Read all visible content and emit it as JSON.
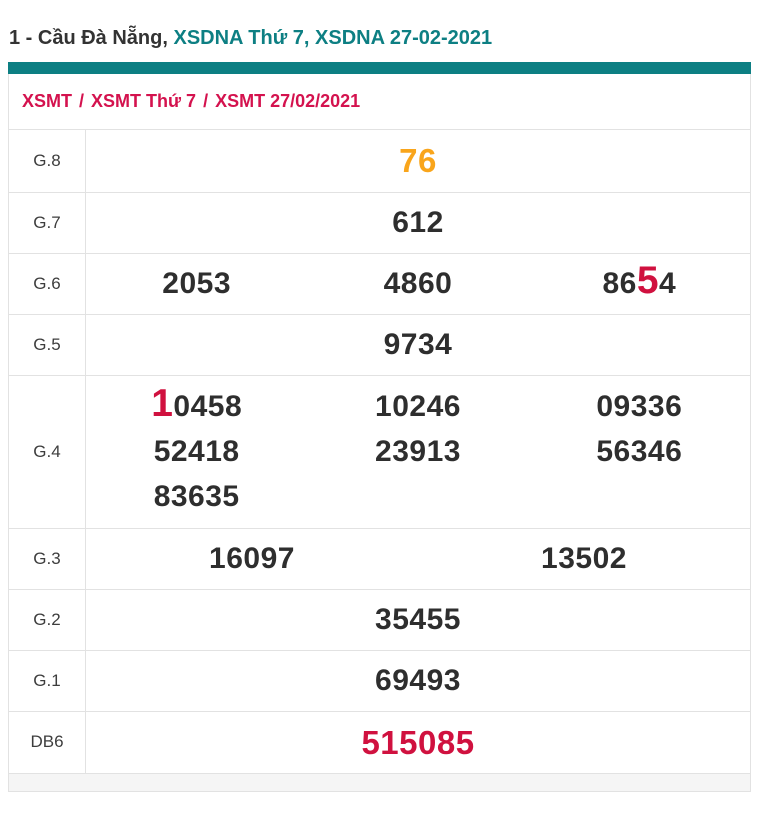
{
  "page": {
    "colors": {
      "accent_teal": "#0d7f83",
      "crimson": "#d4124e",
      "value_red": "#d0113f",
      "orange": "#f9a51b",
      "text_dark": "#333333",
      "number_dark": "#2e2e2e",
      "border": "#e2e2e2",
      "strip_bg": "#f5f5f5"
    },
    "title": {
      "segments": [
        {
          "text": "1 - Cầu Đà Nẵng, ",
          "style": "dark",
          "link": false
        },
        {
          "text": "XSDNA Thứ 7, ",
          "style": "teal",
          "link": true
        },
        {
          "text": "XSDNA 27-02-2021",
          "style": "teal",
          "link": true
        }
      ]
    },
    "breadcrumb": {
      "separator": "/",
      "items": [
        "XSMT",
        "XSMT Thứ 7",
        "XSMT 27/02/2021"
      ]
    },
    "results_table": {
      "rows": [
        {
          "label": "G.8",
          "cols": 1,
          "values": [
            {
              "text": "76",
              "style": "orange"
            }
          ]
        },
        {
          "label": "G.7",
          "cols": 1,
          "values": [
            {
              "text": "612"
            }
          ]
        },
        {
          "label": "G.6",
          "cols": 3,
          "values": [
            {
              "text": "2053"
            },
            {
              "text": "4860"
            },
            {
              "text": "8654",
              "highlight_index": 2
            }
          ]
        },
        {
          "label": "G.5",
          "cols": 1,
          "values": [
            {
              "text": "9734"
            }
          ]
        },
        {
          "label": "G.4",
          "cols": 3,
          "values": [
            {
              "text": "10458",
              "highlight_index": 0
            },
            {
              "text": "10246"
            },
            {
              "text": "09336"
            },
            {
              "text": "52418"
            },
            {
              "text": "23913"
            },
            {
              "text": "56346"
            },
            {
              "text": "83635"
            }
          ]
        },
        {
          "label": "G.3",
          "cols": 2,
          "values": [
            {
              "text": "16097"
            },
            {
              "text": "13502"
            }
          ]
        },
        {
          "label": "G.2",
          "cols": 1,
          "values": [
            {
              "text": "35455"
            }
          ]
        },
        {
          "label": "G.1",
          "cols": 1,
          "values": [
            {
              "text": "69493"
            }
          ]
        },
        {
          "label": "DB6",
          "cols": 1,
          "values": [
            {
              "text": "515085",
              "style": "red"
            }
          ]
        }
      ]
    }
  }
}
